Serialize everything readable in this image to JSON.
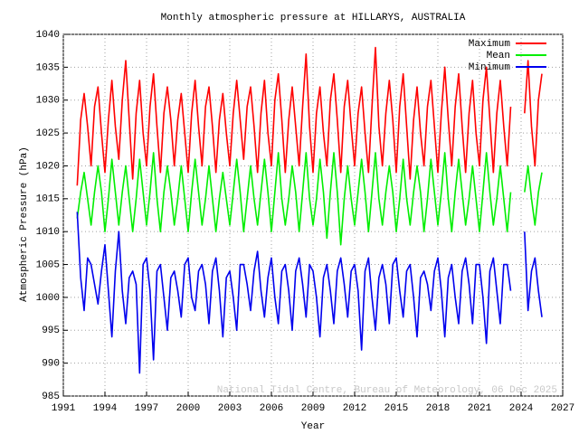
{
  "chart_data": {
    "type": "line",
    "title": "Monthly atmospheric pressure at HILLARYS, AUSTRALIA",
    "x_label": "Year",
    "y_label": "Atmospheric Pressure (hPa)",
    "annotation": "National Tidal Centre, Bureau of Meteorology, 06 Dec 2025",
    "legend_position": "upper right",
    "grid": true,
    "xlim": [
      1991,
      2027
    ],
    "xticks": [
      1991,
      1994,
      1997,
      2000,
      2003,
      2006,
      2009,
      2012,
      2015,
      2018,
      2021,
      2024,
      2027
    ],
    "ylim": [
      985,
      1040
    ],
    "yticks": [
      985,
      990,
      995,
      1000,
      1005,
      1010,
      1015,
      1020,
      1025,
      1030,
      1035,
      1040
    ],
    "x": [
      1992,
      1992.25,
      1992.5,
      1992.75,
      1993,
      1993.25,
      1993.5,
      1993.75,
      1994,
      1994.25,
      1994.5,
      1994.75,
      1995,
      1995.25,
      1995.5,
      1995.75,
      1996,
      1996.25,
      1996.5,
      1996.75,
      1997,
      1997.25,
      1997.5,
      1997.75,
      1998,
      1998.25,
      1998.5,
      1998.75,
      1999,
      1999.25,
      1999.5,
      1999.75,
      2000,
      2000.25,
      2000.5,
      2000.75,
      2001,
      2001.25,
      2001.5,
      2001.75,
      2002,
      2002.25,
      2002.5,
      2002.75,
      2003,
      2003.25,
      2003.5,
      2003.75,
      2004,
      2004.25,
      2004.5,
      2004.75,
      2005,
      2005.25,
      2005.5,
      2005.75,
      2006,
      2006.25,
      2006.5,
      2006.75,
      2007,
      2007.25,
      2007.5,
      2007.75,
      2008,
      2008.25,
      2008.5,
      2008.75,
      2009,
      2009.25,
      2009.5,
      2009.75,
      2010,
      2010.25,
      2010.5,
      2010.75,
      2011,
      2011.25,
      2011.5,
      2011.75,
      2012,
      2012.25,
      2012.5,
      2012.75,
      2013,
      2013.25,
      2013.5,
      2013.75,
      2014,
      2014.25,
      2014.5,
      2014.75,
      2015,
      2015.25,
      2015.5,
      2015.75,
      2016,
      2016.25,
      2016.5,
      2016.75,
      2017,
      2017.25,
      2017.5,
      2017.75,
      2018,
      2018.25,
      2018.5,
      2018.75,
      2019,
      2019.25,
      2019.5,
      2019.75,
      2020,
      2020.25,
      2020.5,
      2020.75,
      2021,
      2021.25,
      2021.5,
      2021.75,
      2022,
      2022.25,
      2022.5,
      2022.75,
      2023,
      2023.25,
      2023.5,
      2023.75,
      2024,
      2024.25,
      2024.5,
      2024.75,
      2025,
      2025.25,
      2025.5
    ],
    "series": [
      {
        "name": "Maximum",
        "color": "#ff0000",
        "values": [
          1017,
          1027,
          1031,
          1026,
          1020,
          1029,
          1032,
          1025,
          1019,
          1027,
          1033,
          1026,
          1021,
          1030,
          1036,
          1027,
          1018,
          1028,
          1033,
          1025,
          1020,
          1029,
          1034,
          1026,
          1019,
          1028,
          1032,
          1027,
          1020,
          1027,
          1031,
          1025,
          1019,
          1028,
          1033,
          1026,
          1020,
          1029,
          1032,
          1026,
          1019,
          1027,
          1031,
          1025,
          1020,
          1028,
          1033,
          1027,
          1021,
          1029,
          1032,
          1026,
          1019,
          1028,
          1033,
          1025,
          1020,
          1030,
          1034,
          1027,
          1019,
          1027,
          1032,
          1026,
          1020,
          1029,
          1037,
          1026,
          1019,
          1028,
          1032,
          1025,
          1020,
          1030,
          1034,
          1027,
          1019,
          1029,
          1033,
          1026,
          1020,
          1028,
          1032,
          1025,
          1019,
          1029,
          1038,
          1026,
          1020,
          1028,
          1033,
          1027,
          1019,
          1029,
          1034,
          1026,
          1018,
          1027,
          1032,
          1025,
          1020,
          1029,
          1033,
          1026,
          1019,
          1028,
          1035,
          1027,
          1020,
          1029,
          1034,
          1026,
          1019,
          1028,
          1033,
          1025,
          1020,
          1030,
          1035,
          1027,
          1019,
          1028,
          1033,
          1026,
          1020,
          1029,
          null,
          null,
          null,
          1028,
          1036,
          1026,
          1020,
          1030,
          1034
        ]
      },
      {
        "name": "Mean",
        "color": "#00ee00",
        "values": [
          1012,
          1016,
          1019,
          1015,
          1011,
          1016,
          1020,
          1016,
          1010,
          1015,
          1021,
          1016,
          1011,
          1016,
          1020,
          1015,
          1010,
          1015,
          1021,
          1016,
          1011,
          1016,
          1022,
          1015,
          1010,
          1016,
          1020,
          1016,
          1011,
          1015,
          1020,
          1015,
          1010,
          1016,
          1021,
          1016,
          1011,
          1015,
          1020,
          1015,
          1010,
          1015,
          1019,
          1015,
          1011,
          1016,
          1021,
          1016,
          1010,
          1015,
          1020,
          1015,
          1011,
          1016,
          1021,
          1016,
          1010,
          1016,
          1022,
          1015,
          1011,
          1015,
          1020,
          1016,
          1010,
          1016,
          1022,
          1015,
          1011,
          1015,
          1021,
          1016,
          1009,
          1016,
          1022,
          1016,
          1008,
          1015,
          1020,
          1015,
          1011,
          1016,
          1021,
          1016,
          1010,
          1016,
          1022,
          1015,
          1011,
          1016,
          1020,
          1016,
          1010,
          1015,
          1021,
          1015,
          1011,
          1016,
          1020,
          1016,
          1010,
          1015,
          1021,
          1016,
          1011,
          1016,
          1022,
          1015,
          1010,
          1016,
          1021,
          1016,
          1011,
          1015,
          1020,
          1015,
          1010,
          1016,
          1022,
          1016,
          1011,
          1015,
          1020,
          1015,
          1010,
          1016,
          null,
          null,
          null,
          1016,
          1020,
          1015,
          1011,
          1016,
          1019
        ]
      },
      {
        "name": "Minimum",
        "color": "#0000ee",
        "values": [
          1013,
          1003,
          998,
          1006,
          1005,
          1002,
          999,
          1004,
          1008,
          1001,
          994,
          1004,
          1010,
          1001,
          996,
          1003,
          1004,
          1002,
          988.5,
          1005,
          1006,
          1001,
          990.5,
          1004,
          1005,
          1000,
          995,
          1003,
          1004,
          1001,
          997,
          1005,
          1006,
          1000,
          998,
          1004,
          1005,
          1002,
          996,
          1004,
          1006,
          1001,
          994,
          1003,
          1004,
          1000,
          995,
          1005,
          1005,
          1002,
          998,
          1004,
          1007,
          1001,
          997,
          1003,
          1006,
          1000,
          996,
          1004,
          1005,
          1001,
          995,
          1004,
          1006,
          1002,
          997,
          1005,
          1004,
          1000,
          994,
          1003,
          1005,
          1001,
          996,
          1004,
          1006,
          1002,
          997,
          1004,
          1005,
          1001,
          992,
          1004,
          1006,
          1000,
          995,
          1003,
          1005,
          1002,
          996,
          1005,
          1006,
          1001,
          997,
          1004,
          1005,
          1000,
          994,
          1003,
          1004,
          1002,
          998,
          1004,
          1006,
          1001,
          994,
          1003,
          1005,
          1000,
          996,
          1004,
          1006,
          1002,
          996,
          1005,
          1005,
          1000,
          993,
          1004,
          1006,
          1001,
          996,
          1005,
          1005,
          1001,
          null,
          null,
          null,
          1010,
          998,
          1004,
          1006,
          1001,
          997
        ]
      }
    ]
  }
}
